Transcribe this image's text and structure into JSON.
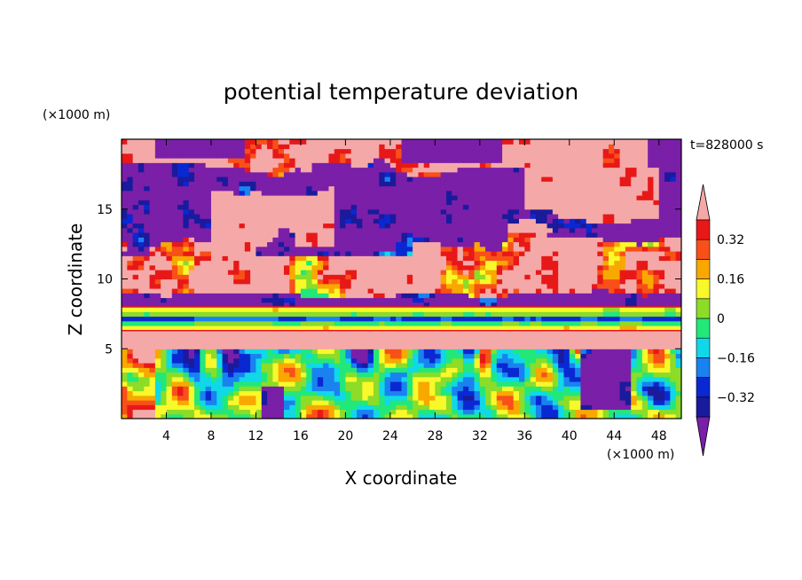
{
  "chart_data": {
    "type": "heatmap",
    "title": "potential temperature deviation",
    "xlabel": "X coordinate",
    "ylabel": "Z coordinate",
    "x_unit": "(×1000 m)",
    "y_unit": "(×1000 m)",
    "time_label": "t=828000 s",
    "xlim": [
      0,
      50
    ],
    "ylim": [
      0,
      20
    ],
    "x_ticks": [
      4,
      8,
      12,
      16,
      20,
      24,
      28,
      32,
      36,
      40,
      44,
      48
    ],
    "y_ticks": [
      5,
      10,
      15
    ],
    "colorbar": {
      "levels": [
        -0.4,
        -0.32,
        -0.24,
        -0.16,
        -0.08,
        0,
        0.08,
        0.16,
        0.24,
        0.32,
        0.4
      ],
      "labels": [
        {
          "value": 0.32,
          "text": "0.32"
        },
        {
          "value": 0.16,
          "text": "0.16"
        },
        {
          "value": 0,
          "text": "0"
        },
        {
          "value": -0.16,
          "text": "−0.16"
        },
        {
          "value": -0.32,
          "text": "−0.32"
        }
      ],
      "colors": [
        "#7a1fa8",
        "#1a1a9c",
        "#0a28d2",
        "#1a82f0",
        "#10d8e8",
        "#22e87a",
        "#8cdc28",
        "#f8f82a",
        "#f8a800",
        "#f85018",
        "#e81818",
        "#f5a8a8"
      ],
      "over_color": "#f5a8a8",
      "under_color": "#7a1fa8"
    },
    "description_regions": [
      {
        "z": [
          17.8,
          20
        ],
        "value": 0.45
      },
      {
        "z": [
          13,
          17.8
        ],
        "value": -0.45
      },
      {
        "z": [
          9,
          13
        ],
        "value": 0.45
      },
      {
        "z": [
          8,
          9
        ],
        "value": -0.45
      },
      {
        "z": [
          6.3,
          8
        ],
        "value": 0.05
      },
      {
        "z": [
          5,
          6.3
        ],
        "value": 0.45
      },
      {
        "z": [
          0,
          5
        ],
        "value": 0.0
      }
    ]
  }
}
